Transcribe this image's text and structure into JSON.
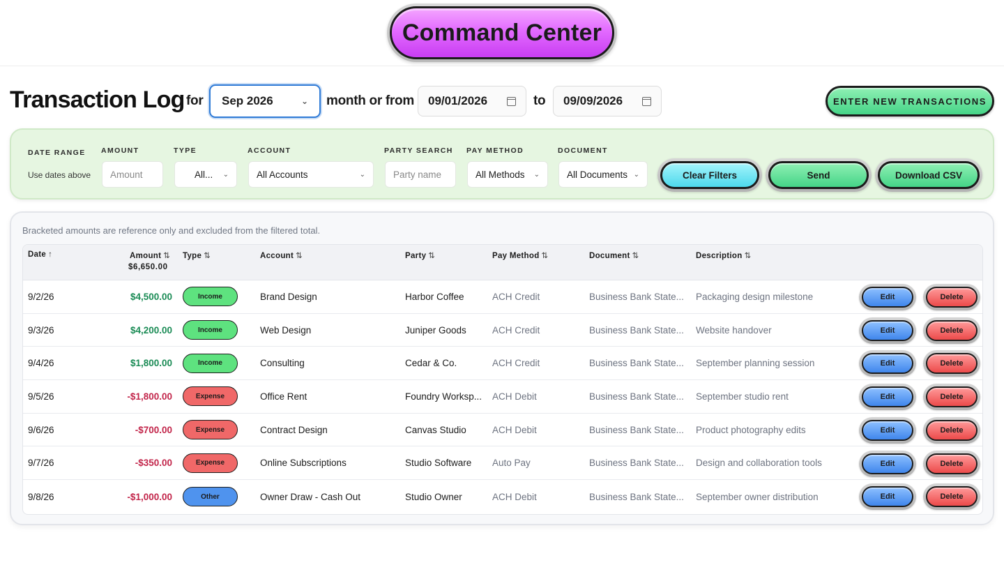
{
  "header": {
    "command_center_label": "Command Center"
  },
  "title_row": {
    "title": "Transaction Log",
    "for_label": "for",
    "month_value": "Sep 2026",
    "month_or_from_label": "month or from",
    "from_date": "09/01/2026",
    "to_label": "to",
    "to_date": "09/09/2026",
    "enter_button_label": "ENTER NEW TRANSACTIONS"
  },
  "filters": {
    "date_range_label": "DATE RANGE",
    "date_range_hint": "Use dates above",
    "amount_label": "AMOUNT",
    "amount_placeholder": "Amount",
    "type_label": "TYPE",
    "type_value": "All...",
    "account_label": "ACCOUNT",
    "account_value": "All Accounts",
    "party_label": "PARTY SEARCH",
    "party_placeholder": "Party name",
    "pay_method_label": "PAY METHOD",
    "pay_method_value": "All Methods",
    "document_label": "DOCUMENT",
    "document_value": "All Documents",
    "clear_label": "Clear Filters",
    "send_label": "Send",
    "download_label": "Download CSV"
  },
  "table": {
    "note": "Bracketed amounts are reference only and excluded from the filtered total.",
    "columns": {
      "date": "Date",
      "amount": "Amount",
      "amount_total": "$6,650.00",
      "type": "Type",
      "account": "Account",
      "party": "Party",
      "pay_method": "Pay Method",
      "document": "Document",
      "description": "Description"
    },
    "sort_icons": {
      "asc": "↑",
      "both": "⇅"
    },
    "edit_label": "Edit",
    "delete_label": "Delete",
    "rows": [
      {
        "date": "9/2/26",
        "amount": "$4,500.00",
        "sign": "pos",
        "type": "Income",
        "type_class": "income",
        "account": "Brand Design",
        "party": "Harbor Coffee",
        "pay_method": "ACH Credit",
        "document": "Business Bank State...",
        "description": "Packaging design milestone"
      },
      {
        "date": "9/3/26",
        "amount": "$4,200.00",
        "sign": "pos",
        "type": "Income",
        "type_class": "income",
        "account": "Web Design",
        "party": "Juniper Goods",
        "pay_method": "ACH Credit",
        "document": "Business Bank State...",
        "description": "Website handover"
      },
      {
        "date": "9/4/26",
        "amount": "$1,800.00",
        "sign": "pos",
        "type": "Income",
        "type_class": "income",
        "account": "Consulting",
        "party": "Cedar & Co.",
        "pay_method": "ACH Credit",
        "document": "Business Bank State...",
        "description": "September planning session"
      },
      {
        "date": "9/5/26",
        "amount": "-$1,800.00",
        "sign": "neg",
        "type": "Expense",
        "type_class": "expense",
        "account": "Office Rent",
        "party": "Foundry Worksp...",
        "pay_method": "ACH Debit",
        "document": "Business Bank State...",
        "description": "September studio rent"
      },
      {
        "date": "9/6/26",
        "amount": "-$700.00",
        "sign": "neg",
        "type": "Expense",
        "type_class": "expense",
        "account": "Contract Design",
        "party": "Canvas Studio",
        "pay_method": "ACH Debit",
        "document": "Business Bank State...",
        "description": "Product photography edits"
      },
      {
        "date": "9/7/26",
        "amount": "-$350.00",
        "sign": "neg",
        "type": "Expense",
        "type_class": "expense",
        "account": "Online Subscriptions",
        "party": "Studio Software",
        "pay_method": "Auto Pay",
        "document": "Business Bank State...",
        "description": "Design and collaboration tools"
      },
      {
        "date": "9/8/26",
        "amount": "-$1,000.00",
        "sign": "neg",
        "type": "Other",
        "type_class": "other",
        "account": "Owner Draw - Cash Out",
        "party": "Studio Owner",
        "pay_method": "ACH Debit",
        "document": "Business Bank State...",
        "description": "September owner distribution"
      }
    ]
  },
  "colors": {
    "command_center": "#e36bff",
    "positive_amount": "#1a8b55",
    "negative_amount": "#c2254a",
    "income_badge": "#5ee27f",
    "expense_badge": "#f06868",
    "other_badge": "#4f93ee",
    "filter_panel": "#e6f6e1"
  },
  "icons": {
    "calendar": "calendar-icon",
    "dropdown": "chevron-down-icon",
    "sort": "sort-icon"
  }
}
